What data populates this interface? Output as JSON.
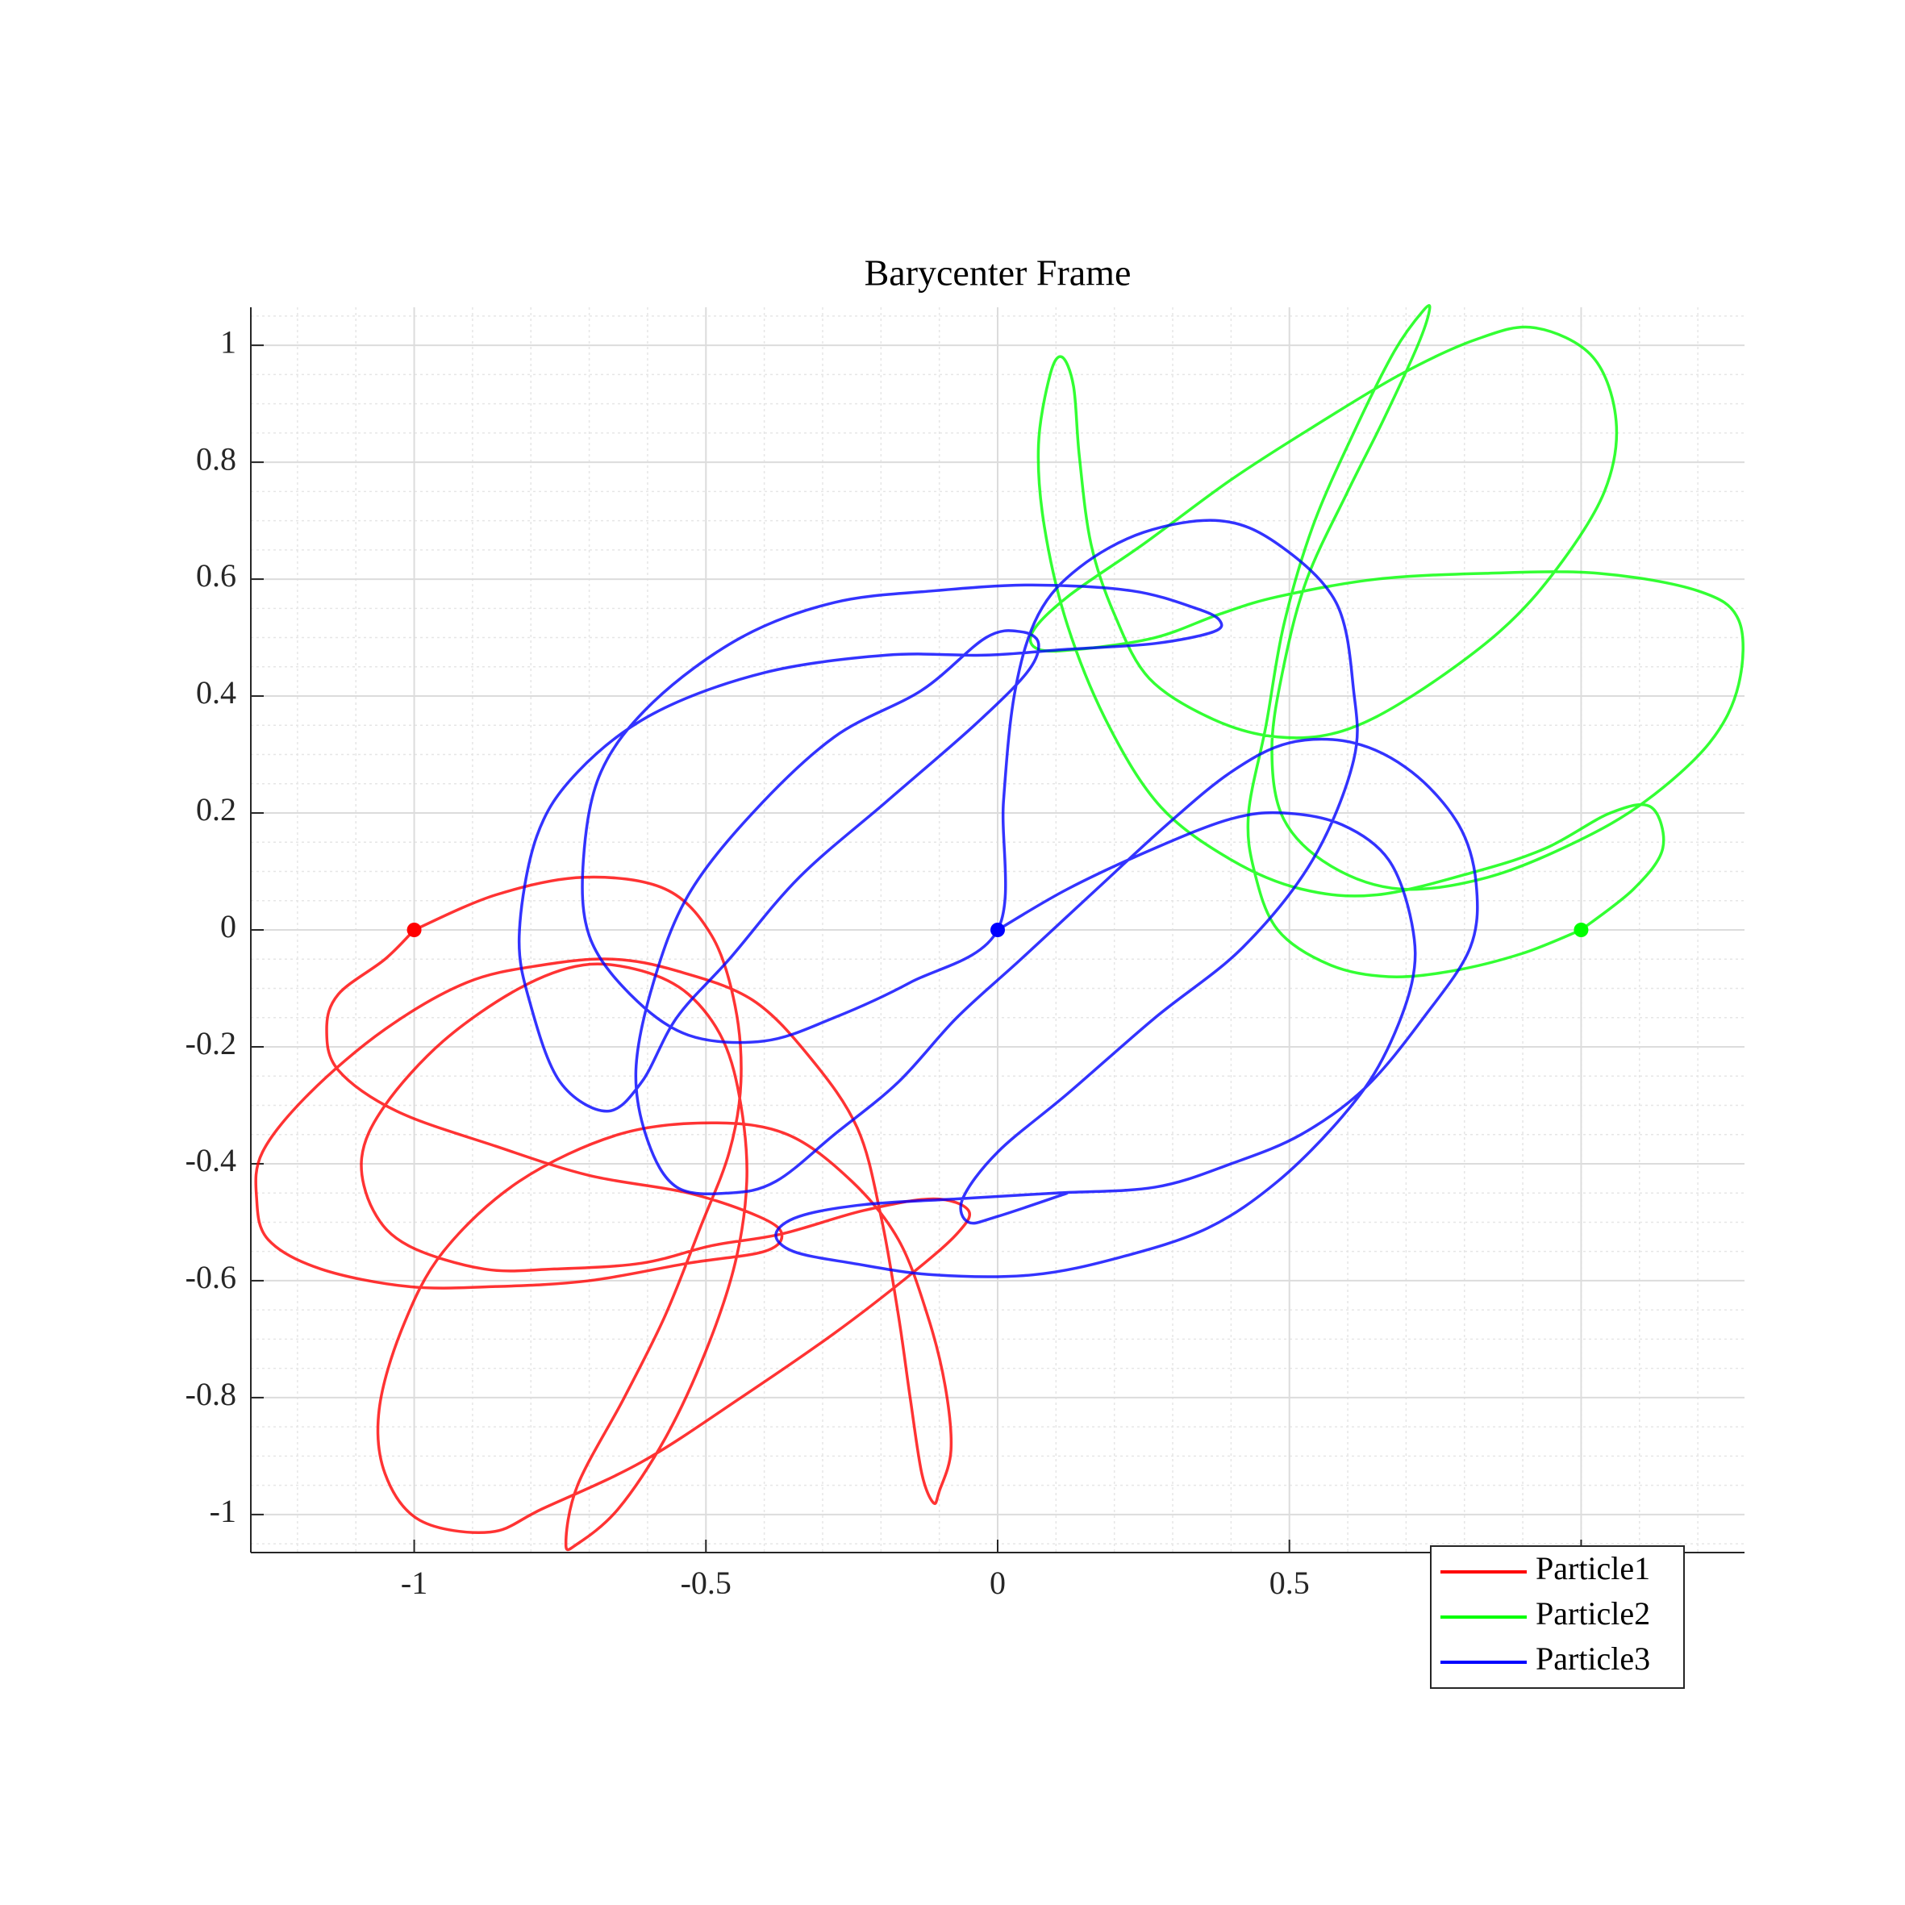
{
  "chart_data": {
    "type": "line",
    "title": "Barycenter Frame",
    "xlim": [
      -1.28,
      1.28
    ],
    "ylim": [
      -1.065,
      1.065
    ],
    "xticks": [
      -1,
      -0.5,
      0,
      0.5,
      1
    ],
    "yticks": [
      -1,
      -0.8,
      -0.6,
      -0.4,
      -0.2,
      0,
      0.2,
      0.4,
      0.6,
      0.8,
      1
    ],
    "grid": true,
    "minor_grid": true,
    "legend": "lower right",
    "start_markers": true,
    "series": [
      {
        "name": "Particle1",
        "color": "#ff0000",
        "x": [
          -1.0,
          -0.86,
          -0.71,
          -0.57,
          -0.49,
          -0.45,
          -0.44,
          -0.46,
          -0.51,
          -0.57,
          -0.64,
          -0.72,
          -0.74,
          -0.72,
          -0.65,
          -0.57,
          -0.5,
          -0.45,
          -0.43,
          -0.44,
          -0.47,
          -0.53,
          -0.61,
          -0.71,
          -0.82,
          -0.95,
          -1.05,
          -1.09,
          -1.07,
          -1.01,
          -0.88,
          -0.76,
          -0.61,
          -0.49,
          -0.37,
          -0.23,
          -0.11,
          -0.05,
          -0.07,
          -0.15,
          -0.28,
          -0.44,
          -0.61,
          -0.78,
          -0.87,
          -0.99,
          -1.05,
          -1.06,
          -1.02,
          -0.95,
          -0.82,
          -0.65,
          -0.49,
          -0.36,
          -0.25,
          -0.17,
          -0.12,
          -0.09,
          -0.08,
          -0.1,
          -0.11,
          -0.13,
          -0.15,
          -0.17,
          -0.2,
          -0.24,
          -0.32,
          -0.42,
          -0.55,
          -0.66,
          -0.78,
          -0.91,
          -1.05,
          -1.18,
          -1.26,
          -1.27,
          -1.25,
          -1.16,
          -1.01,
          -0.86,
          -0.7,
          -0.53,
          -0.4,
          -0.37,
          -0.41,
          -0.53,
          -0.7,
          -0.86,
          -1.03,
          -1.13,
          -1.15,
          -1.13,
          -1.05,
          -1.0
        ],
        "values": [
          0,
          0.06,
          0.09,
          0.07,
          -0.01,
          -0.13,
          -0.26,
          -0.38,
          -0.51,
          -0.66,
          -0.8,
          -0.95,
          -1.05,
          -1.05,
          -0.99,
          -0.87,
          -0.72,
          -0.57,
          -0.43,
          -0.3,
          -0.19,
          -0.11,
          -0.07,
          -0.06,
          -0.1,
          -0.19,
          -0.3,
          -0.39,
          -0.48,
          -0.54,
          -0.58,
          -0.58,
          -0.57,
          -0.54,
          -0.52,
          -0.48,
          -0.46,
          -0.48,
          -0.52,
          -0.59,
          -0.69,
          -0.8,
          -0.91,
          -0.99,
          -1.03,
          -1.01,
          -0.93,
          -0.82,
          -0.68,
          -0.55,
          -0.43,
          -0.35,
          -0.33,
          -0.35,
          -0.43,
          -0.53,
          -0.66,
          -0.78,
          -0.89,
          -0.96,
          -0.98,
          -0.93,
          -0.8,
          -0.66,
          -0.49,
          -0.34,
          -0.22,
          -0.12,
          -0.07,
          -0.05,
          -0.06,
          -0.09,
          -0.17,
          -0.28,
          -0.38,
          -0.46,
          -0.53,
          -0.58,
          -0.61,
          -0.61,
          -0.6,
          -0.57,
          -0.55,
          -0.52,
          -0.49,
          -0.45,
          -0.42,
          -0.37,
          -0.31,
          -0.24,
          -0.17,
          -0.11,
          -0.05,
          0
        ]
      },
      {
        "name": "Particle2",
        "color": "#00ff00",
        "x": [
          1.0,
          0.9,
          0.78,
          0.67,
          0.57,
          0.48,
          0.44,
          0.43,
          0.46,
          0.49,
          0.54,
          0.61,
          0.68,
          0.73,
          0.74,
          0.72,
          0.66,
          0.6,
          0.53,
          0.49,
          0.47,
          0.49,
          0.57,
          0.69,
          0.84,
          0.99,
          1.11,
          1.22,
          1.27,
          1.27,
          1.2,
          1.03,
          0.84,
          0.65,
          0.48,
          0.38,
          0.27,
          0.14,
          0.07,
          0.06,
          0.12,
          0.25,
          0.4,
          0.54,
          0.69,
          0.82,
          0.92,
          1.02,
          1.06,
          1.04,
          0.96,
          0.86,
          0.71,
          0.59,
          0.48,
          0.37,
          0.26,
          0.2,
          0.16,
          0.14,
          0.13,
          0.11,
          0.09,
          0.07,
          0.08,
          0.12,
          0.19,
          0.28,
          0.4,
          0.52,
          0.65,
          0.82,
          0.94,
          1.05,
          1.12,
          1.14,
          1.09,
          1.0
        ],
        "values": [
          0,
          -0.04,
          -0.07,
          -0.08,
          -0.06,
          0.0,
          0.1,
          0.2,
          0.35,
          0.52,
          0.69,
          0.85,
          0.99,
          1.06,
          1.06,
          1.0,
          0.87,
          0.75,
          0.6,
          0.45,
          0.31,
          0.19,
          0.11,
          0.07,
          0.09,
          0.15,
          0.22,
          0.32,
          0.42,
          0.53,
          0.58,
          0.61,
          0.61,
          0.6,
          0.57,
          0.54,
          0.5,
          0.48,
          0.48,
          0.51,
          0.57,
          0.66,
          0.77,
          0.86,
          0.95,
          1.01,
          1.03,
          0.98,
          0.87,
          0.75,
          0.62,
          0.51,
          0.4,
          0.34,
          0.33,
          0.36,
          0.43,
          0.54,
          0.66,
          0.81,
          0.93,
          0.98,
          0.95,
          0.83,
          0.69,
          0.52,
          0.35,
          0.21,
          0.12,
          0.07,
          0.06,
          0.1,
          0.14,
          0.2,
          0.21,
          0.14,
          0.07,
          0
        ]
      },
      {
        "name": "Particle3",
        "color": "#0000ff",
        "x": [
          0,
          0.12,
          0.27,
          0.4,
          0.49,
          0.59,
          0.67,
          0.71,
          0.71,
          0.66,
          0.59,
          0.48,
          0.36,
          0.21,
          0.06,
          -0.11,
          -0.25,
          -0.35,
          -0.38,
          -0.34,
          -0.23,
          -0.07,
          0.1,
          0.27,
          0.4,
          0.52,
          0.63,
          0.73,
          0.81,
          0.82,
          0.79,
          0.71,
          0.61,
          0.5,
          0.4,
          0.29,
          0.17,
          0.04,
          -0.07,
          -0.17,
          -0.28,
          -0.38,
          -0.46,
          -0.55,
          -0.6,
          -0.62,
          -0.59,
          -0.53,
          -0.42,
          -0.28,
          -0.13,
          -0.02,
          0.04,
          0.07,
          0.05,
          -0.04,
          -0.19,
          -0.34,
          -0.46,
          -0.55,
          -0.61,
          -0.67,
          -0.75,
          -0.8,
          -0.82,
          -0.79,
          -0.72,
          -0.59,
          -0.4,
          -0.19,
          -0.02,
          0.12,
          0.27,
          0.37,
          0.38,
          0.34,
          0.23,
          0.06,
          -0.11,
          -0.28,
          -0.44,
          -0.59,
          -0.68,
          -0.71,
          -0.7,
          -0.63,
          -0.53,
          -0.4,
          -0.28,
          -0.15,
          0,
          0.01,
          0.03,
          0.07,
          0.14,
          0.25,
          0.38,
          0.48,
          0.58,
          0.61,
          0.61,
          0.54,
          0.42,
          0.27,
          0.12,
          0.0,
          -0.06,
          -0.05,
          0.0,
          0.12
        ],
        "values": [
          0,
          0.07,
          0.14,
          0.19,
          0.2,
          0.18,
          0.12,
          0.01,
          -0.09,
          -0.22,
          -0.32,
          -0.43,
          -0.51,
          -0.56,
          -0.59,
          -0.59,
          -0.57,
          -0.55,
          -0.52,
          -0.49,
          -0.47,
          -0.46,
          -0.45,
          -0.44,
          -0.4,
          -0.35,
          -0.27,
          -0.15,
          -0.03,
          0.08,
          0.18,
          0.27,
          0.32,
          0.32,
          0.27,
          0.18,
          0.07,
          -0.05,
          -0.15,
          -0.26,
          -0.35,
          -0.43,
          -0.45,
          -0.44,
          -0.36,
          -0.24,
          -0.09,
          0.06,
          0.2,
          0.33,
          0.41,
          0.5,
          0.51,
          0.49,
          0.44,
          0.35,
          0.22,
          0.09,
          -0.05,
          -0.15,
          -0.26,
          -0.31,
          -0.26,
          -0.13,
          -0.01,
          0.16,
          0.27,
          0.37,
          0.44,
          0.47,
          0.47,
          0.48,
          0.49,
          0.51,
          0.53,
          0.55,
          0.58,
          0.59,
          0.58,
          0.56,
          0.5,
          0.39,
          0.27,
          0.12,
          -0.01,
          -0.11,
          -0.18,
          -0.19,
          -0.15,
          -0.09,
          0,
          0.22,
          0.41,
          0.54,
          0.62,
          0.68,
          0.7,
          0.66,
          0.56,
          0.41,
          0.29,
          0.12,
          -0.03,
          -0.15,
          -0.28,
          -0.38,
          -0.46,
          -0.5,
          -0.49,
          -0.45
        ]
      }
    ]
  }
}
